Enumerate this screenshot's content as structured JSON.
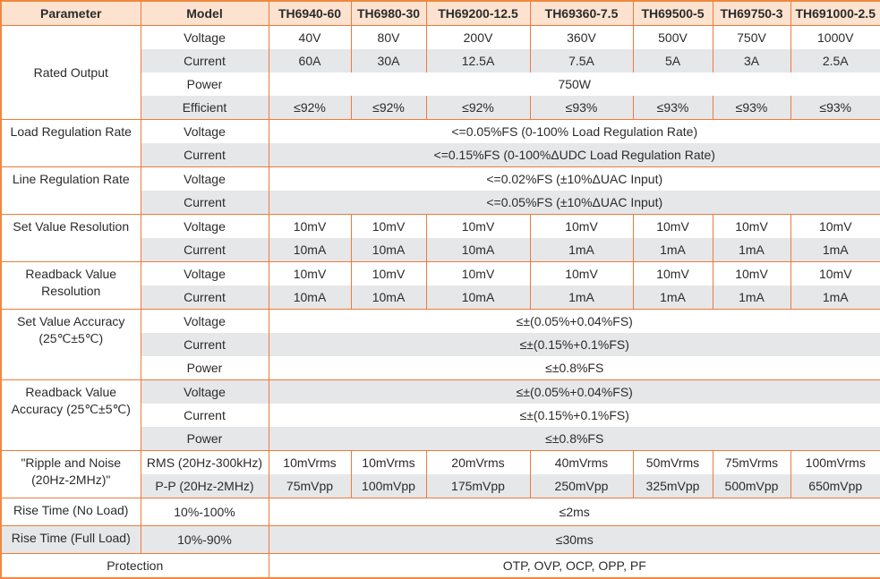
{
  "header": {
    "parameter": "Parameter",
    "model": "Model",
    "models": [
      "TH6940-60",
      "TH6980-30",
      "TH69200-12.5",
      "TH69360-7.5",
      "TH69500-5",
      "TH69750-3",
      "TH691000-2.5"
    ]
  },
  "groups": [
    {
      "param": "Rated Output",
      "rows": [
        {
          "label": "Voltage",
          "values": [
            "40V",
            "80V",
            "200V",
            "360V",
            "500V",
            "750V",
            "1000V"
          ]
        },
        {
          "label": "Current",
          "values": [
            "60A",
            "30A",
            "12.5A",
            "7.5A",
            "5A",
            "3A",
            "2.5A"
          ]
        },
        {
          "label": "Power",
          "value": "750W"
        },
        {
          "label": "Efficient",
          "values": [
            "≤92%",
            "≤92%",
            "≤92%",
            "≤93%",
            "≤93%",
            "≤93%",
            "≤93%"
          ]
        }
      ]
    },
    {
      "param": "Load Regulation Rate",
      "rows": [
        {
          "label": "Voltage",
          "value": "<=0.05%FS (0-100% Load Regulation Rate)"
        },
        {
          "label": "Current",
          "value": "<=0.15%FS (0-100%ΔUDC Load Regulation Rate)"
        }
      ]
    },
    {
      "param": "Line Regulation Rate",
      "rows": [
        {
          "label": "Voltage",
          "value": "<=0.02%FS  (±10%ΔUAC Input)"
        },
        {
          "label": "Current",
          "value": "<=0.05%FS (±10%ΔUAC Input)"
        }
      ]
    },
    {
      "param": "Set Value Resolution",
      "rows": [
        {
          "label": "Voltage",
          "values": [
            "10mV",
            "10mV",
            "10mV",
            "10mV",
            "10mV",
            "10mV",
            "10mV"
          ]
        },
        {
          "label": "Current",
          "values": [
            "10mA",
            "10mA",
            "10mA",
            "1mA",
            "1mA",
            "1mA",
            "1mA"
          ]
        }
      ]
    },
    {
      "param": "Readback Value Resolution",
      "rows": [
        {
          "label": "Voltage",
          "values": [
            "10mV",
            "10mV",
            "10mV",
            "10mV",
            "10mV",
            "10mV",
            "10mV"
          ]
        },
        {
          "label": "Current",
          "values": [
            "10mA",
            "10mA",
            "10mA",
            "1mA",
            "1mA",
            "1mA",
            "1mA"
          ]
        }
      ]
    },
    {
      "param": "Set Value Accuracy (25℃±5℃)",
      "rows": [
        {
          "label": "Voltage",
          "value": "≤±(0.05%+0.04%FS)"
        },
        {
          "label": "Current",
          "value": "≤±(0.15%+0.1%FS)"
        },
        {
          "label": "Power",
          "value": "≤±0.8%FS"
        }
      ]
    },
    {
      "param": "Readback Value Accuracy (25℃±5℃)",
      "rows": [
        {
          "label": "Voltage",
          "value": "≤±(0.05%+0.04%FS)"
        },
        {
          "label": "Current",
          "value": "≤±(0.15%+0.1%FS)"
        },
        {
          "label": "Power",
          "value": "≤±0.8%FS"
        }
      ]
    },
    {
      "param": "\"Ripple and Noise (20Hz-2MHz)\"",
      "rows": [
        {
          "label": "RMS (20Hz-300kHz)",
          "values": [
            "10mVrms",
            "10mVrms",
            "20mVrms",
            "40mVrms",
            "50mVrms",
            "75mVrms",
            "100mVrms"
          ]
        },
        {
          "label": "P-P (20Hz-2MHz)",
          "values": [
            "75mVpp",
            "100mVpp",
            "175mVpp",
            "250mVpp",
            "325mVpp",
            "500mVpp",
            "650mVpp"
          ]
        }
      ]
    },
    {
      "param": "Rise Time (No Load)",
      "rows": [
        {
          "label": "10%-100%",
          "value": "≤2ms"
        }
      ]
    },
    {
      "param": "Rise Time (Full Load)",
      "rows": [
        {
          "label": "10%-90%",
          "value": "≤30ms"
        }
      ]
    },
    {
      "param": "Protection",
      "rows": [
        {
          "value": "OTP, OVP,   OCP, OPP, PF"
        }
      ]
    }
  ]
}
